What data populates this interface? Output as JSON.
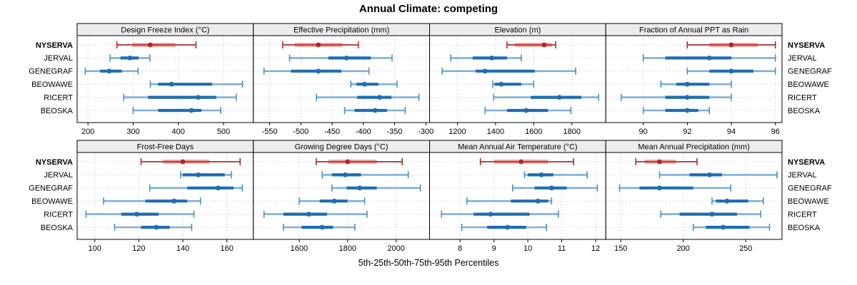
{
  "title": "Annual Climate: competing",
  "caption": "5th-25th-50th-75th-95th Percentiles",
  "stations": [
    "NYSERVA",
    "JERVAL",
    "GENEGRAF",
    "BEOWAWE",
    "RICERT",
    "BEOSKA"
  ],
  "highlight_station": "NYSERVA",
  "percentile_labels": [
    "5th",
    "25th",
    "50th",
    "75th",
    "95th"
  ],
  "colors": {
    "highlight": "#b2282d",
    "highlight_band": "#edaaa5",
    "normal": "#1e6db3",
    "normal_light": "#7fb0d8",
    "normal_mid": "#4a90c4",
    "grid": "#bdbdbd",
    "strip_bg": "#ececec",
    "border": "#000000"
  },
  "chart_data": [
    {
      "type": "dotplot-intervals",
      "title": "Design Freeze Index (°C)",
      "row": 0,
      "col": 0,
      "xlim": [
        176,
        566
      ],
      "ticks": [
        200,
        300,
        400,
        500
      ],
      "series": [
        {
          "name": "NYSERVA",
          "values": [
            264,
            298,
            338,
            394,
            439
          ]
        },
        {
          "name": "JERVAL",
          "values": [
            249,
            272,
            293,
            312,
            337
          ]
        },
        {
          "name": "GENEGRAF",
          "values": [
            194,
            227,
            247,
            275,
            311
          ]
        },
        {
          "name": "BEOWAWE",
          "values": [
            338,
            355,
            385,
            475,
            542
          ]
        },
        {
          "name": "RICERT",
          "values": [
            279,
            333,
            444,
            484,
            528
          ]
        },
        {
          "name": "BEOSKA",
          "values": [
            300,
            355,
            429,
            451,
            494
          ]
        }
      ]
    },
    {
      "type": "dotplot-intervals",
      "title": "Effective Precipitation (mm)",
      "row": 0,
      "col": 1,
      "xlim": [
        -576,
        -294
      ],
      "ticks": [
        -550,
        -500,
        -450,
        -400,
        -350,
        -300
      ],
      "series": [
        {
          "name": "NYSERVA",
          "values": [
            -529,
            -510,
            -472,
            -433,
            -408
          ]
        },
        {
          "name": "JERVAL",
          "values": [
            -518,
            -456,
            -427,
            -388,
            -354
          ]
        },
        {
          "name": "GENEGRAF",
          "values": [
            -559,
            -516,
            -472,
            -435,
            -391
          ]
        },
        {
          "name": "BEOWAWE",
          "values": [
            -420,
            -411,
            -398,
            -376,
            -346
          ]
        },
        {
          "name": "RICERT",
          "values": [
            -475,
            -410,
            -374,
            -355,
            -311
          ]
        },
        {
          "name": "BEOSKA",
          "values": [
            -430,
            -414,
            -381,
            -362,
            -333
          ]
        }
      ]
    },
    {
      "type": "dotplot-intervals",
      "title": "Elevation (m)",
      "row": 0,
      "col": 2,
      "xlim": [
        1054,
        1978
      ],
      "ticks": [
        1200,
        1400,
        1600,
        1800
      ],
      "series": [
        {
          "name": "NYSERVA",
          "values": [
            1460,
            1500,
            1655,
            1695,
            1715
          ]
        },
        {
          "name": "JERVAL",
          "values": [
            1165,
            1280,
            1380,
            1460,
            1535
          ]
        },
        {
          "name": "GENEGRAF",
          "values": [
            1120,
            1295,
            1345,
            1605,
            1820
          ]
        },
        {
          "name": "BEOWAWE",
          "values": [
            1385,
            1395,
            1430,
            1535,
            1600
          ]
        },
        {
          "name": "RICERT",
          "values": [
            1390,
            1585,
            1735,
            1850,
            1940
          ]
        },
        {
          "name": "BEOSKA",
          "values": [
            1345,
            1460,
            1560,
            1675,
            1795
          ]
        }
      ]
    },
    {
      "type": "dotplot-intervals",
      "title": "Fraction of Annual PPT as Rain",
      "row": 0,
      "col": 3,
      "xlim": [
        88.3,
        96.3
      ],
      "ticks": [
        90,
        92,
        94,
        96
      ],
      "series": [
        {
          "name": "NYSERVA",
          "values": [
            92,
            93,
            94,
            95.2,
            96
          ]
        },
        {
          "name": "JERVAL",
          "values": [
            90,
            91,
            93,
            94,
            96
          ]
        },
        {
          "name": "GENEGRAF",
          "values": [
            92,
            93,
            94,
            95,
            96
          ]
        },
        {
          "name": "BEOWAWE",
          "values": [
            90.8,
            91.5,
            92,
            93,
            94
          ]
        },
        {
          "name": "RICERT",
          "values": [
            89,
            91,
            92,
            93,
            94
          ]
        },
        {
          "name": "BEOSKA",
          "values": [
            90,
            91,
            92,
            92.5,
            93
          ]
        }
      ]
    },
    {
      "type": "dotplot-intervals",
      "title": "Frost-Free Days",
      "row": 1,
      "col": 0,
      "xlim": [
        92,
        172
      ],
      "ticks": [
        100,
        120,
        140,
        160
      ],
      "series": [
        {
          "name": "NYSERVA",
          "values": [
            121,
            131,
            140,
            152,
            166
          ]
        },
        {
          "name": "JERVAL",
          "values": [
            139,
            140,
            147,
            159,
            162
          ]
        },
        {
          "name": "GENEGRAF",
          "values": [
            125,
            142,
            156,
            163,
            167
          ]
        },
        {
          "name": "BEOWAWE",
          "values": [
            104,
            123,
            136,
            142,
            148
          ]
        },
        {
          "name": "RICERT",
          "values": [
            96,
            112,
            119,
            129,
            145
          ]
        },
        {
          "name": "BEOSKA",
          "values": [
            109,
            121,
            128,
            134,
            144
          ]
        }
      ]
    },
    {
      "type": "dotplot-intervals",
      "title": "Growing Degree Days (°C)",
      "row": 1,
      "col": 1,
      "xlim": [
        1411,
        2138
      ],
      "ticks": [
        1600,
        1800,
        2000
      ],
      "series": [
        {
          "name": "NYSERVA",
          "values": [
            1670,
            1720,
            1800,
            1920,
            2025
          ]
        },
        {
          "name": "JERVAL",
          "values": [
            1695,
            1735,
            1790,
            1855,
            2050
          ]
        },
        {
          "name": "GENEGRAF",
          "values": [
            1735,
            1795,
            1850,
            1920,
            2100
          ]
        },
        {
          "name": "BEOWAWE",
          "values": [
            1600,
            1685,
            1745,
            1800,
            1870
          ]
        },
        {
          "name": "RICERT",
          "values": [
            1455,
            1535,
            1640,
            1715,
            1880
          ]
        },
        {
          "name": "BEOSKA",
          "values": [
            1535,
            1610,
            1695,
            1740,
            1830
          ]
        }
      ]
    },
    {
      "type": "dotplot-intervals",
      "title": "Mean Annual Air Temperature (°C)",
      "row": 1,
      "col": 2,
      "xlim": [
        7.1,
        12.3
      ],
      "ticks": [
        8,
        9,
        10,
        11,
        12
      ],
      "series": [
        {
          "name": "NYSERVA",
          "values": [
            8.6,
            9.0,
            9.8,
            10.6,
            11.35
          ]
        },
        {
          "name": "JERVAL",
          "values": [
            9.9,
            10.0,
            10.4,
            10.75,
            11.75
          ]
        },
        {
          "name": "GENEGRAF",
          "values": [
            9.55,
            10.2,
            10.7,
            11.15,
            12.05
          ]
        },
        {
          "name": "BEOWAWE",
          "values": [
            8.2,
            9.5,
            10.3,
            10.6,
            10.7
          ]
        },
        {
          "name": "RICERT",
          "values": [
            7.45,
            8.4,
            8.9,
            10.05,
            10.9
          ]
        },
        {
          "name": "BEOSKA",
          "values": [
            8.05,
            8.8,
            9.4,
            9.95,
            10.55
          ]
        }
      ]
    },
    {
      "type": "dotplot-intervals",
      "title": "Mean Annual Precipitation (mm)",
      "row": 1,
      "col": 3,
      "xlim": [
        138,
        279
      ],
      "ticks": [
        150,
        200,
        250
      ],
      "series": [
        {
          "name": "NYSERVA",
          "values": [
            162,
            169,
            181,
            194,
            211
          ]
        },
        {
          "name": "JERVAL",
          "values": [
            181,
            205,
            221,
            231,
            275
          ]
        },
        {
          "name": "GENEGRAF",
          "values": [
            149,
            165,
            181,
            208,
            238
          ]
        },
        {
          "name": "BEOWAWE",
          "values": [
            223,
            226,
            235,
            252,
            264
          ]
        },
        {
          "name": "RICERT",
          "values": [
            182,
            197,
            223,
            243,
            262
          ]
        },
        {
          "name": "BEOSKA",
          "values": [
            208,
            218,
            232,
            253,
            269
          ]
        }
      ]
    }
  ]
}
